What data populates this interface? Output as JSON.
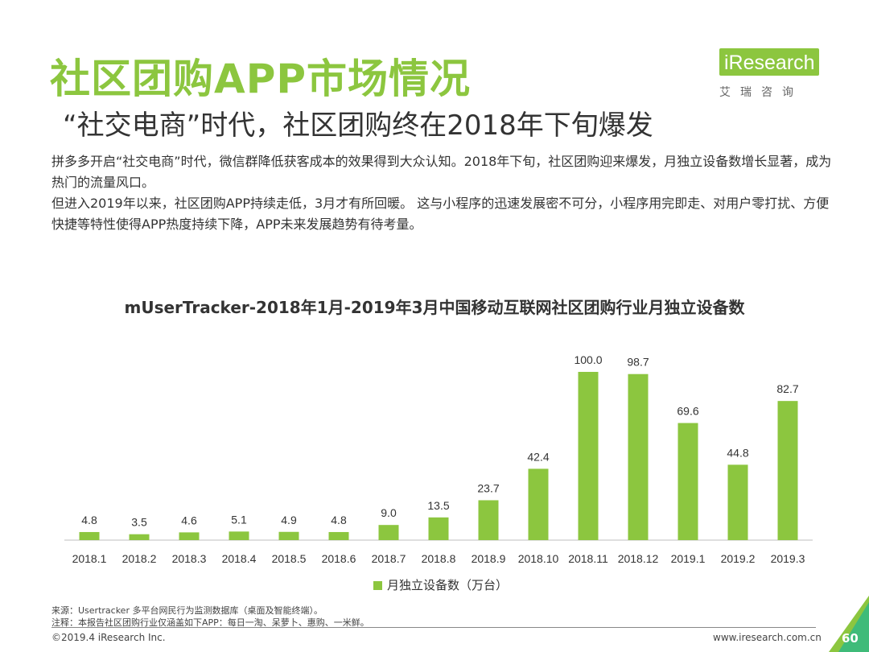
{
  "header": {
    "title": "社区团购APP市场情况",
    "subtitle": "“社交电商”时代，社区团购终在2018年下旬爆发"
  },
  "logo": {
    "name": "iResearch",
    "sub": "艾瑞咨询"
  },
  "intro": {
    "p1": "拼多多开启“社交电商”时代，微信群降低获客成本的效果得到大众认知。2018年下旬，社区团购迎来爆发，月独立设备数增长显著，成为热门的流量风口。",
    "p2": "但进入2019年以来，社区团购APP持续走低，3月才有所回暖。 这与小程序的迅速发展密不可分，小程序用完即走、对用户零打扰、方便快捷等特性使得APP热度持续下降，APP未来发展趋势有待考量。"
  },
  "chart_data": {
    "type": "bar",
    "title": "mUserTracker-2018年1月-2019年3月中国移动互联网社区团购行业月独立设备数",
    "categories": [
      "2018.1",
      "2018.2",
      "2018.3",
      "2018.4",
      "2018.5",
      "2018.6",
      "2018.7",
      "2018.8",
      "2018.9",
      "2018.10",
      "2018.11",
      "2018.12",
      "2019.1",
      "2019.2",
      "2019.3"
    ],
    "series": [
      {
        "name": "月独立设备数（万台）",
        "values": [
          4.8,
          3.5,
          4.6,
          5.1,
          4.9,
          4.8,
          9.0,
          13.5,
          23.7,
          42.4,
          100.0,
          98.7,
          69.6,
          44.8,
          82.7
        ]
      }
    ],
    "value_labels": [
      "4.8",
      "3.5",
      "4.6",
      "5.1",
      "4.9",
      "4.8",
      "9.0",
      "13.5",
      "23.7",
      "42.4",
      "100.0",
      "98.7",
      "69.6",
      "44.8",
      "82.7"
    ],
    "xlabel": "",
    "ylabel": "",
    "ylim": [
      0,
      100
    ],
    "grid": false,
    "legend": "bottom",
    "color": "#8cc63f"
  },
  "footnotes": {
    "source": "来源：Usertracker 多平台网民行为监测数据库（桌面及智能终端）。",
    "note": "注释：本报告社区团购行业仅涵盖如下APP：每日一淘、呆萝卜、惠购、一米鲜。"
  },
  "footer": {
    "copyright": "©2019.4 iResearch Inc.",
    "website": "www.iresearch.com.cn",
    "page": "60"
  },
  "colors": {
    "accent": "#8cc63f",
    "text": "#333333"
  }
}
